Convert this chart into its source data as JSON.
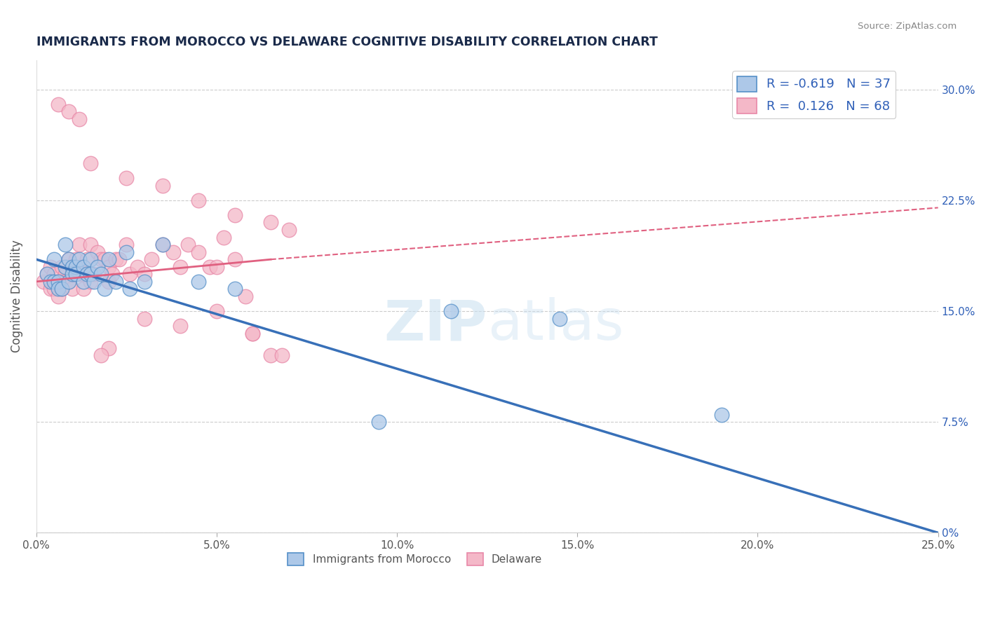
{
  "title": "IMMIGRANTS FROM MOROCCO VS DELAWARE COGNITIVE DISABILITY CORRELATION CHART",
  "source": "Source: ZipAtlas.com",
  "ylabel": "Cognitive Disability",
  "x_tick_labels": [
    "0.0%",
    "5.0%",
    "10.0%",
    "15.0%",
    "20.0%",
    "25.0%"
  ],
  "x_tick_vals": [
    0.0,
    5.0,
    10.0,
    15.0,
    20.0,
    25.0
  ],
  "y_tick_labels": [
    "0%",
    "7.5%",
    "15.0%",
    "22.5%",
    "30.0%"
  ],
  "y_tick_vals": [
    0.0,
    7.5,
    15.0,
    22.5,
    30.0
  ],
  "xlim": [
    0.0,
    25.0
  ],
  "ylim": [
    0.0,
    32.0
  ],
  "legend_blue_label": "R = -0.619   N = 37",
  "legend_pink_label": "R =  0.126   N = 68",
  "blue_color": "#adc8e8",
  "pink_color": "#f4b8c8",
  "blue_edge_color": "#5590c8",
  "pink_edge_color": "#e888a8",
  "blue_line_color": "#3870b8",
  "pink_line_color": "#e06080",
  "background_color": "#ffffff",
  "legend_text_color": "#3060b8",
  "bottom_legend_color": "#555555",
  "blue_scatter_x": [
    0.3,
    0.4,
    0.5,
    0.5,
    0.6,
    0.6,
    0.7,
    0.8,
    0.8,
    0.9,
    0.9,
    1.0,
    1.0,
    1.1,
    1.1,
    1.2,
    1.3,
    1.3,
    1.4,
    1.5,
    1.5,
    1.6,
    1.7,
    1.8,
    1.9,
    2.0,
    2.2,
    2.5,
    2.6,
    3.0,
    3.5,
    4.5,
    5.5,
    11.5,
    14.5,
    19.0,
    9.5
  ],
  "blue_scatter_y": [
    17.5,
    17.0,
    18.5,
    17.0,
    17.0,
    16.5,
    16.5,
    19.5,
    18.0,
    18.5,
    17.0,
    18.0,
    17.5,
    18.0,
    17.5,
    18.5,
    18.0,
    17.0,
    17.5,
    18.5,
    17.5,
    17.0,
    18.0,
    17.5,
    16.5,
    18.5,
    17.0,
    19.0,
    16.5,
    17.0,
    19.5,
    17.0,
    16.5,
    15.0,
    14.5,
    8.0,
    7.5
  ],
  "pink_scatter_x": [
    0.2,
    0.3,
    0.4,
    0.4,
    0.5,
    0.5,
    0.6,
    0.6,
    0.7,
    0.7,
    0.8,
    0.8,
    0.9,
    0.9,
    1.0,
    1.0,
    1.0,
    1.1,
    1.2,
    1.2,
    1.3,
    1.3,
    1.4,
    1.5,
    1.5,
    1.6,
    1.7,
    1.8,
    1.9,
    2.0,
    2.0,
    2.1,
    2.2,
    2.3,
    2.5,
    2.6,
    2.8,
    3.0,
    3.2,
    3.5,
    3.8,
    4.0,
    4.2,
    4.5,
    4.8,
    5.0,
    5.2,
    5.5,
    5.8,
    6.0,
    6.5,
    6.8,
    0.6,
    0.9,
    1.2,
    1.5,
    2.5,
    3.5,
    4.5,
    5.5,
    6.5,
    7.0,
    3.0,
    4.0,
    5.0,
    6.0,
    2.0,
    1.8
  ],
  "pink_scatter_y": [
    17.0,
    17.5,
    18.0,
    16.5,
    17.5,
    16.5,
    17.0,
    16.0,
    18.0,
    16.5,
    17.5,
    17.0,
    18.5,
    17.0,
    18.0,
    17.5,
    16.5,
    18.5,
    19.5,
    17.5,
    17.5,
    16.5,
    18.5,
    19.5,
    17.0,
    17.5,
    19.0,
    18.5,
    18.5,
    18.0,
    17.0,
    17.5,
    18.5,
    18.5,
    19.5,
    17.5,
    18.0,
    17.5,
    18.5,
    19.5,
    19.0,
    18.0,
    19.5,
    19.0,
    18.0,
    18.0,
    20.0,
    18.5,
    16.0,
    13.5,
    12.0,
    12.0,
    29.0,
    28.5,
    28.0,
    25.0,
    24.0,
    23.5,
    22.5,
    21.5,
    21.0,
    20.5,
    14.5,
    14.0,
    15.0,
    13.5,
    12.5,
    12.0
  ],
  "blue_line_x0": 0.0,
  "blue_line_y0": 18.5,
  "blue_line_x1": 25.0,
  "blue_line_y1": 0.0,
  "pink_solid_x0": 0.0,
  "pink_solid_y0": 17.0,
  "pink_solid_x1": 6.5,
  "pink_solid_y1": 18.5,
  "pink_dash_x0": 6.5,
  "pink_dash_y0": 18.5,
  "pink_dash_x1": 25.0,
  "pink_dash_y1": 22.0
}
